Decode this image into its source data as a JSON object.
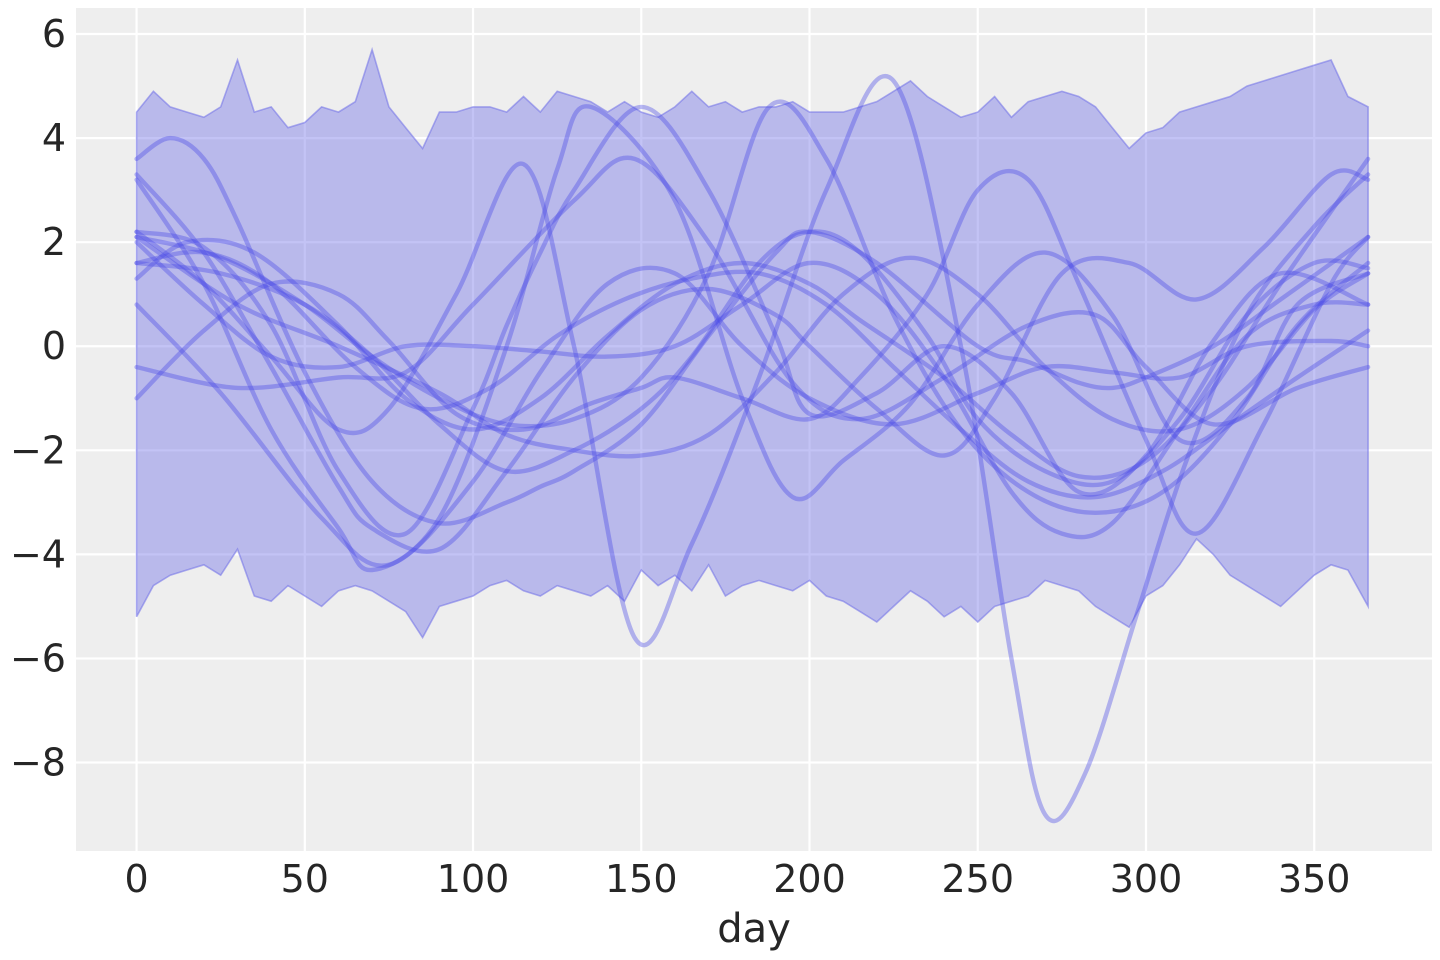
{
  "chart_data": {
    "type": "line",
    "xlabel": "day",
    "ylabel": "",
    "title": "",
    "xlim": [
      -18,
      385
    ],
    "ylim": [
      -9.7,
      6.5
    ],
    "grid": true,
    "legend": "none",
    "x_ticks": [
      0,
      50,
      100,
      150,
      200,
      250,
      300,
      350
    ],
    "y_ticks": [
      6,
      4,
      2,
      0,
      -2,
      -4,
      -6,
      -8
    ],
    "x_tick_labels": [
      "0",
      "50",
      "100",
      "150",
      "200",
      "250",
      "300",
      "350"
    ],
    "y_tick_labels": [
      "6",
      "4",
      "2",
      "0",
      "−2",
      "−4",
      "−6",
      "−8"
    ],
    "colors": {
      "background": "#eeeeee",
      "band": "#6f6fe6",
      "curve": "#4a4ae8"
    },
    "band": {
      "x": [
        0,
        5,
        10,
        15,
        20,
        25,
        30,
        35,
        40,
        45,
        50,
        55,
        60,
        65,
        70,
        75,
        80,
        85,
        90,
        95,
        100,
        105,
        110,
        115,
        120,
        125,
        130,
        135,
        140,
        145,
        150,
        155,
        160,
        165,
        170,
        175,
        180,
        185,
        190,
        195,
        200,
        205,
        210,
        215,
        220,
        225,
        230,
        235,
        240,
        245,
        250,
        255,
        260,
        265,
        270,
        275,
        280,
        285,
        290,
        295,
        300,
        305,
        310,
        315,
        320,
        325,
        330,
        335,
        340,
        345,
        350,
        355,
        360,
        366
      ],
      "upper": [
        4.5,
        4.9,
        4.6,
        4.5,
        4.4,
        4.6,
        5.5,
        4.5,
        4.6,
        4.2,
        4.3,
        4.6,
        4.5,
        4.7,
        5.7,
        4.6,
        4.2,
        3.8,
        4.5,
        4.5,
        4.6,
        4.6,
        4.5,
        4.8,
        4.5,
        4.9,
        4.8,
        4.7,
        4.5,
        4.7,
        4.5,
        4.4,
        4.6,
        4.9,
        4.6,
        4.7,
        4.5,
        4.6,
        4.6,
        4.7,
        4.5,
        4.5,
        4.5,
        4.6,
        4.7,
        4.9,
        5.1,
        4.8,
        4.6,
        4.4,
        4.5,
        4.8,
        4.4,
        4.7,
        4.8,
        4.9,
        4.8,
        4.6,
        4.2,
        3.8,
        4.1,
        4.2,
        4.5,
        4.6,
        4.7,
        4.8,
        5.0,
        5.1,
        5.2,
        5.3,
        5.4,
        5.5,
        4.8,
        4.6
      ],
      "lower": [
        -5.2,
        -4.6,
        -4.4,
        -4.3,
        -4.2,
        -4.4,
        -3.9,
        -4.8,
        -4.9,
        -4.6,
        -4.8,
        -5.0,
        -4.7,
        -4.6,
        -4.7,
        -4.9,
        -5.1,
        -5.6,
        -5.0,
        -4.9,
        -4.8,
        -4.6,
        -4.5,
        -4.7,
        -4.8,
        -4.6,
        -4.7,
        -4.8,
        -4.6,
        -4.9,
        -4.3,
        -4.6,
        -4.4,
        -4.7,
        -4.2,
        -4.8,
        -4.6,
        -4.5,
        -4.6,
        -4.7,
        -4.5,
        -4.8,
        -4.9,
        -5.1,
        -5.3,
        -5.0,
        -4.7,
        -4.9,
        -5.2,
        -5.0,
        -5.3,
        -5.0,
        -4.9,
        -4.8,
        -4.5,
        -4.6,
        -4.7,
        -5.0,
        -5.2,
        -5.4,
        -4.8,
        -4.6,
        -4.2,
        -3.7,
        -4.0,
        -4.4,
        -4.6,
        -4.8,
        -5.0,
        -4.7,
        -4.4,
        -4.2,
        -4.3,
        -5.0
      ]
    },
    "series": [
      {
        "x": [
          0,
          10,
          20,
          30,
          50,
          70,
          90,
          110,
          120,
          130,
          150,
          170,
          190,
          200,
          220,
          250,
          265,
          280,
          290,
          300,
          320,
          340,
          366
        ],
        "values": [
          3.6,
          4.0,
          3.6,
          2.4,
          -0.5,
          -2.6,
          -3.4,
          -3.0,
          -2.7,
          -2.4,
          -1.5,
          0.2,
          1.8,
          2.2,
          1.6,
          0.0,
          -0.3,
          -0.7,
          -0.8,
          -0.6,
          0.0,
          0.9,
          2.1
        ]
      },
      {
        "x": [
          0,
          20,
          40,
          60,
          80,
          100,
          110,
          120,
          130,
          150,
          170,
          190,
          200,
          220,
          240,
          260,
          280,
          300,
          320,
          340,
          366
        ],
        "values": [
          2.2,
          1.9,
          0.4,
          -2.4,
          -3.6,
          -1.2,
          0.4,
          1.8,
          3.0,
          4.6,
          3.0,
          0.2,
          -1.3,
          -0.9,
          0.0,
          -0.9,
          -2.8,
          -2.1,
          0.1,
          1.4,
          0.8
        ]
      },
      {
        "x": [
          0,
          25,
          50,
          70,
          90,
          110,
          130,
          150,
          165,
          185,
          200,
          215,
          235,
          250,
          270,
          290,
          310,
          330,
          350,
          366
        ],
        "values": [
          1.6,
          1.4,
          0.8,
          -0.2,
          -1.5,
          -2.4,
          -2.0,
          -1.2,
          -0.2,
          1.6,
          2.2,
          1.8,
          0.2,
          -1.4,
          -2.4,
          -2.6,
          -1.4,
          0.6,
          1.6,
          1.5
        ]
      },
      {
        "x": [
          0,
          30,
          60,
          80,
          100,
          130,
          148,
          170,
          195,
          215,
          240,
          265,
          285,
          300,
          320,
          345,
          366
        ],
        "values": [
          -0.4,
          -0.8,
          -0.6,
          -0.5,
          0.8,
          2.8,
          3.6,
          2.0,
          -0.7,
          -1.4,
          -0.6,
          0.4,
          0.6,
          -0.4,
          -1.5,
          -0.8,
          -0.4
        ]
      },
      {
        "x": [
          0,
          15,
          35,
          60,
          80,
          100,
          120,
          140,
          160,
          180,
          200,
          215,
          240,
          260,
          280,
          300,
          320,
          340,
          366
        ],
        "values": [
          1.3,
          2.0,
          1.8,
          0.4,
          -1.0,
          -1.6,
          -1.0,
          0.2,
          1.2,
          1.6,
          1.2,
          0.5,
          -0.6,
          -1.7,
          -2.5,
          -2.2,
          -0.8,
          1.2,
          3.6
        ]
      },
      {
        "x": [
          0,
          25,
          55,
          75,
          100,
          120,
          140,
          160,
          180,
          200,
          225,
          250,
          270,
          290,
          310,
          330,
          355,
          366
        ],
        "values": [
          0.8,
          -0.9,
          -3.3,
          -4.2,
          -2.6,
          -0.5,
          1.2,
          1.4,
          0.0,
          -1.0,
          -1.5,
          -0.9,
          -0.4,
          -0.5,
          -0.6,
          0.0,
          0.1,
          0.0
        ]
      },
      {
        "x": [
          0,
          20,
          40,
          60,
          70,
          90,
          110,
          130,
          150,
          170,
          190,
          200,
          220,
          240,
          255,
          275,
          295,
          315,
          335,
          355,
          366
        ],
        "values": [
          3.3,
          1.8,
          -0.4,
          -2.7,
          -3.5,
          -3.9,
          -2.4,
          -0.6,
          0.7,
          1.1,
          0.6,
          0.0,
          -1.2,
          -2.1,
          -1.0,
          1.4,
          1.6,
          0.9,
          1.9,
          3.3,
          3.2
        ]
      },
      {
        "x": [
          0,
          20,
          40,
          60,
          70,
          90,
          110,
          125,
          135,
          160,
          180,
          195,
          210,
          230,
          250,
          270,
          290,
          310,
          330,
          345,
          366
        ],
        "values": [
          3.2,
          1.2,
          -1.6,
          -3.5,
          -4.3,
          -3.3,
          0.0,
          3.4,
          4.6,
          2.8,
          -1.0,
          -2.9,
          -2.2,
          -1.1,
          0.8,
          1.8,
          0.6,
          -1.8,
          -1.0,
          0.8,
          1.4
        ]
      },
      {
        "x": [
          0,
          20,
          40,
          60,
          75,
          95,
          115,
          135,
          150,
          160,
          180,
          200,
          215,
          235,
          250,
          265,
          280,
          300,
          315,
          335,
          355,
          366
        ],
        "values": [
          -1.0,
          0.3,
          1.2,
          1.0,
          0.1,
          -1.3,
          -1.6,
          -1.1,
          -0.8,
          -0.6,
          -1.0,
          -1.4,
          -0.6,
          1.0,
          3.0,
          3.2,
          1.2,
          -1.8,
          -3.6,
          -1.5,
          1.2,
          2.1
        ]
      },
      {
        "x": [
          0,
          20,
          40,
          60,
          80,
          100,
          120,
          140,
          160,
          180,
          200,
          220,
          240,
          260,
          275,
          290,
          310,
          330,
          350,
          366
        ],
        "values": [
          2.0,
          0.8,
          -0.2,
          -0.4,
          0.0,
          0.0,
          -0.1,
          -0.2,
          0.0,
          0.8,
          1.6,
          1.0,
          -0.6,
          -2.8,
          -3.6,
          -3.4,
          -1.6,
          0.2,
          0.8,
          0.8
        ]
      },
      {
        "x": [
          0,
          30,
          60,
          90,
          110,
          130,
          150,
          170,
          190,
          210,
          230,
          250,
          270,
          290,
          310,
          330,
          350,
          366
        ],
        "values": [
          2.1,
          0.8,
          0.0,
          -0.9,
          -1.7,
          -2.0,
          -2.1,
          -1.7,
          -0.5,
          1.0,
          1.7,
          1.0,
          -0.4,
          -1.4,
          -1.6,
          -0.8,
          0.7,
          1.4
        ]
      },
      {
        "x": [
          0,
          20,
          40,
          65,
          85,
          105,
          125,
          145,
          165,
          185,
          205,
          225,
          245,
          265,
          285,
          305,
          325,
          345,
          366
        ],
        "values": [
          1.6,
          1.8,
          1.2,
          -0.4,
          -1.2,
          -0.8,
          0.2,
          0.9,
          1.3,
          1.4,
          0.8,
          -0.4,
          -1.6,
          -2.6,
          -2.9,
          -2.4,
          -1.5,
          -0.6,
          0.3
        ]
      },
      {
        "x": [
          0,
          20,
          40,
          60,
          75,
          95,
          115,
          130,
          148,
          165,
          185,
          205,
          225,
          245,
          260,
          270,
          282,
          298,
          312,
          330,
          350,
          366
        ],
        "values": [
          2.2,
          1.2,
          -0.2,
          -1.6,
          -1.2,
          1.0,
          3.5,
          0.0,
          -5.6,
          -3.8,
          -0.6,
          3.0,
          5.1,
          0.0,
          -6.0,
          -9.0,
          -8.2,
          -5.0,
          -2.2,
          0.6,
          2.3,
          3.3
        ]
      },
      {
        "x": [
          0,
          25,
          50,
          70,
          90,
          110,
          130,
          150,
          170,
          188,
          205,
          225,
          245,
          265,
          285,
          305,
          325,
          345,
          366
        ],
        "values": [
          2.1,
          1.7,
          0.8,
          -0.2,
          -1.0,
          -1.5,
          -1.4,
          -0.6,
          1.4,
          4.6,
          3.6,
          0.6,
          -1.6,
          -2.8,
          -3.2,
          -2.8,
          -1.5,
          0.4,
          1.6
        ]
      }
    ]
  }
}
